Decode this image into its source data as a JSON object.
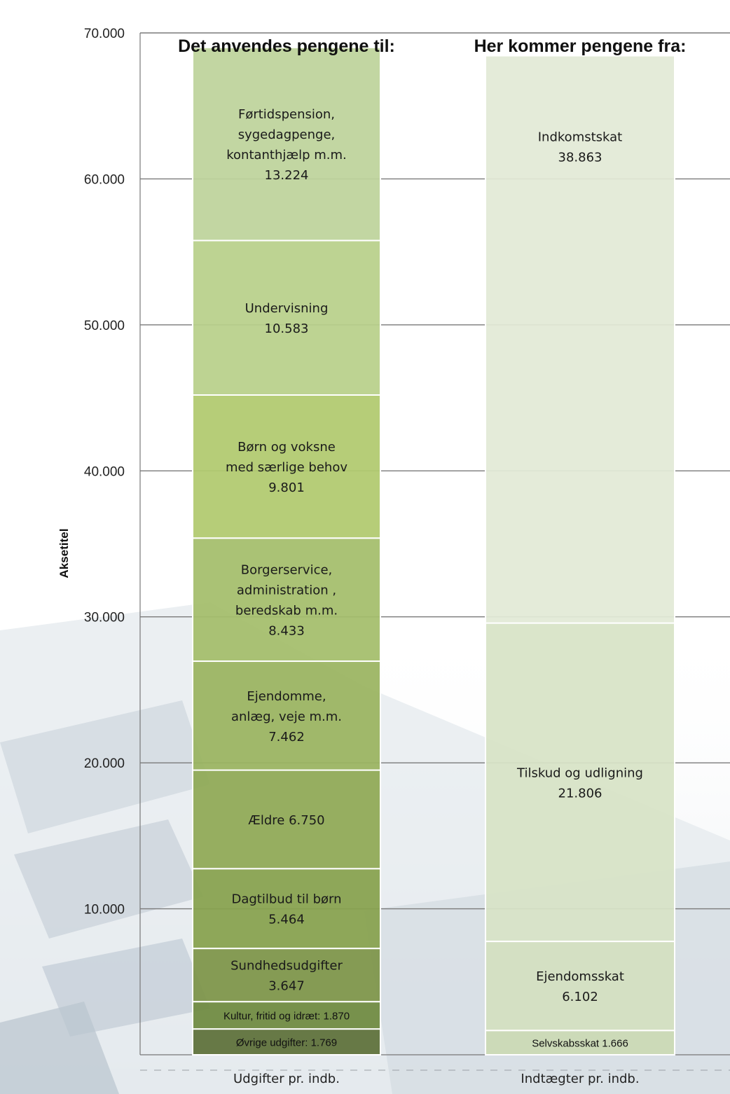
{
  "chart_data": {
    "type": "bar",
    "stacked": true,
    "ylabel": "Aksetitel",
    "ylim": [
      0,
      70000
    ],
    "y_ticks": [
      "70.000",
      "60.000",
      "50.000",
      "40.000",
      "30.000",
      "20.000",
      "10.000"
    ],
    "grid": true,
    "categories": [
      "Udgifter pr. indb.",
      "Indtægter pr. indb."
    ],
    "column_titles": [
      "Det anvendes pengene til:",
      "Her kommer pengene fra:"
    ],
    "stacks": [
      {
        "category": "Udgifter pr. indb.",
        "segments": [
          {
            "label": [
              "Øvrige udgifter: 1.769"
            ],
            "value": 1769,
            "color": "#5c7039"
          },
          {
            "label": [
              "Kultur, fritid og idræt: 1.870"
            ],
            "value": 1870,
            "color": "#6e8a40"
          },
          {
            "label": [
              "Sundhedsudgifter",
              "3.647"
            ],
            "value": 3647,
            "color": "#7d9548"
          },
          {
            "label": [
              "Dagtilbud til børn",
              "5.464"
            ],
            "value": 5464,
            "color": "#86a14d"
          },
          {
            "label": [
              "Ældre 6.750"
            ],
            "value": 6750,
            "color": "#8fa955"
          },
          {
            "label": [
              "Ejendomme,",
              "anlæg, veje m.m.",
              "7.462"
            ],
            "value": 7462,
            "color": "#9ab460"
          },
          {
            "label": [
              "Borgerservice,",
              "administration ,",
              "beredskab m.m.",
              "8.433"
            ],
            "value": 8433,
            "color": "#a4bd6a"
          },
          {
            "label": [
              "Børn og voksne",
              "med særlige behov",
              "9.801"
            ],
            "value": 9801,
            "color": "#b0c96e"
          },
          {
            "label": [
              "Undervisning",
              "10.583"
            ],
            "value": 10583,
            "color": "#b8d08a"
          },
          {
            "label": [
              "Førtidspension,",
              "sygedagpenge,",
              "kontanthjælp m.m.",
              "13.224"
            ],
            "value": 13224,
            "color": "#bdd39b"
          }
        ]
      },
      {
        "category": "Indtægter pr. indb.",
        "segments": [
          {
            "label": [
              "Selvskabsskat 1.666"
            ],
            "value": 1666,
            "color": "#cad9b4"
          },
          {
            "label": [
              "Ejendomsskat",
              "6.102"
            ],
            "value": 6102,
            "color": "#d3e0c0"
          },
          {
            "label": [
              "Tilskud og udligning",
              "21.806"
            ],
            "value": 21806,
            "color": "#d7e3c6"
          },
          {
            "label": [
              "Indkomstskat",
              "38.863"
            ],
            "value": 38863,
            "color": "#e2ead6"
          }
        ]
      }
    ]
  }
}
